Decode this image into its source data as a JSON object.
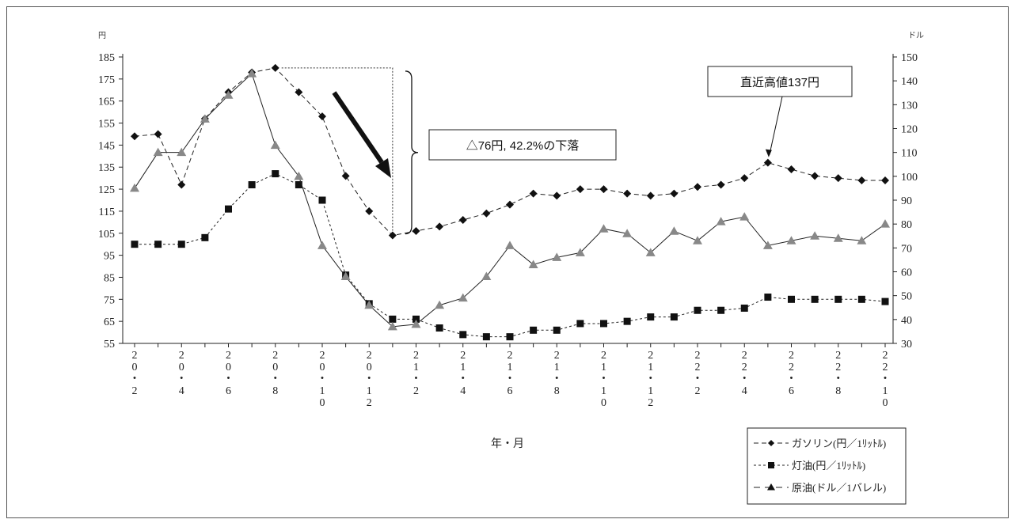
{
  "chart_data": {
    "type": "line",
    "title": "",
    "xlabel": "年・月",
    "ylabel_left": "円",
    "ylabel_right": "ドル",
    "y_left_range": [
      55,
      185
    ],
    "y_left_ticks": [
      55,
      65,
      75,
      85,
      95,
      105,
      115,
      125,
      135,
      145,
      155,
      165,
      175,
      185
    ],
    "y_right_range": [
      30,
      150
    ],
    "y_right_ticks": [
      30,
      40,
      50,
      60,
      70,
      80,
      90,
      100,
      110,
      120,
      130,
      140,
      150
    ],
    "x_tick_labels": [
      [
        "2",
        "0",
        "・",
        "2"
      ],
      [
        "2",
        "0",
        "・",
        "4"
      ],
      [
        "2",
        "0",
        "・",
        "6"
      ],
      [
        "2",
        "0",
        "・",
        "8"
      ],
      [
        "2",
        "0",
        "・",
        "1",
        "0"
      ],
      [
        "2",
        "0",
        "・",
        "1",
        "2"
      ],
      [
        "2",
        "1",
        "・",
        "2"
      ],
      [
        "2",
        "1",
        "・",
        "4"
      ],
      [
        "2",
        "1",
        "・",
        "6"
      ],
      [
        "2",
        "1",
        "・",
        "8"
      ],
      [
        "2",
        "1",
        "・",
        "1",
        "0"
      ],
      [
        "2",
        "1",
        "・",
        "1",
        "2"
      ],
      [
        "2",
        "2",
        "・",
        "2"
      ],
      [
        "2",
        "2",
        "・",
        "4"
      ],
      [
        "2",
        "2",
        "・",
        "6"
      ],
      [
        "2",
        "2",
        "・",
        "8"
      ],
      [
        "2",
        "2",
        "・",
        "1",
        "0"
      ]
    ],
    "x_months": [
      "20・2",
      "20・3",
      "20・4",
      "20・5",
      "20・6",
      "20・7",
      "20・8",
      "20・9",
      "20・10",
      "20・11",
      "20・12",
      "21・1",
      "21・2",
      "21・3",
      "21・4",
      "21・5",
      "21・6",
      "21・7",
      "21・8",
      "21・9",
      "21・10",
      "21・11",
      "21・12",
      "22・1",
      "22・2",
      "22・3",
      "22・4",
      "22・5",
      "22・6",
      "22・7",
      "22・8",
      "22・9",
      "22・10"
    ],
    "legend_position": "bottom-right",
    "grid": false,
    "series": [
      {
        "name": "ガソリン(円／1ﾘｯﾄﾙ)",
        "axis": "left",
        "marker": "diamond",
        "line": "dashed",
        "color": "#111111",
        "values": [
          149,
          150,
          127,
          157,
          169,
          178,
          180,
          169,
          158,
          131,
          115,
          104,
          106,
          108,
          111,
          114,
          118,
          123,
          122,
          125,
          125,
          123,
          122,
          123,
          126,
          127,
          130,
          137,
          134,
          131,
          130,
          129,
          129
        ]
      },
      {
        "name": "灯油(円／1ﾘｯﾄﾙ)",
        "axis": "left",
        "marker": "square",
        "line": "dotted",
        "color": "#111111",
        "values": [
          100,
          100,
          100,
          103,
          116,
          127,
          132,
          127,
          120,
          86,
          73,
          66,
          66,
          62,
          59,
          58,
          58,
          61,
          61,
          64,
          64,
          65,
          67,
          67,
          70,
          70,
          71,
          76,
          75,
          75,
          75,
          75,
          74
        ]
      },
      {
        "name": "原油(ドル／1バレル)",
        "axis": "right",
        "marker": "triangle",
        "line": "solid",
        "color": "#888888",
        "values": [
          95,
          110,
          110,
          124,
          134,
          143,
          113,
          100,
          71,
          58,
          46,
          37,
          38,
          46,
          49,
          58,
          71,
          63,
          66,
          68,
          78,
          76,
          68,
          77,
          73,
          81,
          83,
          71,
          73,
          75,
          74,
          73,
          80
        ]
      }
    ],
    "annotations": [
      {
        "id": "drop",
        "text": "△76円, 42.2%の下落"
      },
      {
        "id": "recent-high",
        "text": "直近高値137円"
      }
    ]
  },
  "legend": {
    "gasoline_label": "ガソリン(円／1ﾘｯﾄﾙ)",
    "kerosene_label": "灯油(円／1ﾘｯﾄﾙ)",
    "crude_label": "原油(ドル／1バレル)"
  }
}
